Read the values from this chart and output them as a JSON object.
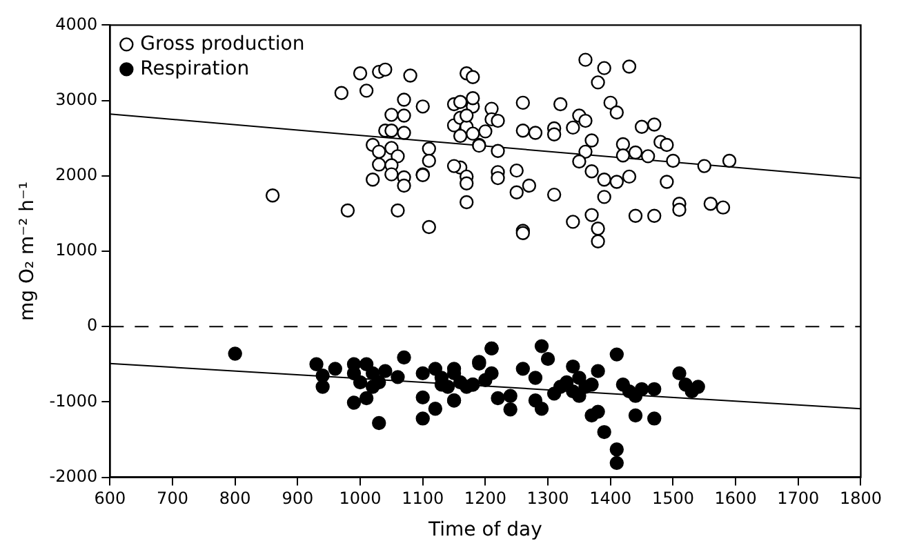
{
  "chart_data": {
    "type": "scatter",
    "xlabel": "Time of day",
    "ylabel": "mg O₂ m⁻² h⁻¹",
    "xlim": [
      600,
      1800
    ],
    "xticks": [
      600,
      700,
      800,
      900,
      1000,
      1100,
      1200,
      1300,
      1400,
      1500,
      1600,
      1700,
      1800
    ],
    "ylim": [
      -2000,
      4000
    ],
    "yticks": [
      -2000,
      -1000,
      0,
      1000,
      2000,
      3000,
      4000
    ],
    "grid": false,
    "legend": "top left",
    "ref_lines": [
      {
        "axis": "y",
        "value": 0,
        "color": "#000000",
        "line_style": "dashed"
      }
    ],
    "series": [
      {
        "name": "Gross production",
        "type": "scatter",
        "color": "#000000",
        "marker": "circle",
        "x": [
          860,
          970,
          1000,
          1010,
          1030,
          1040,
          1080,
          1070,
          1100,
          1050,
          1070,
          1040,
          1050,
          1070,
          1020,
          1030,
          1050,
          1060,
          1030,
          1050,
          1110,
          1110,
          1100,
          1100,
          1020,
          1050,
          1070,
          1070,
          980,
          1060,
          1110,
          1170,
          1180,
          1150,
          1160,
          1180,
          1180,
          1210,
          1150,
          1160,
          1170,
          1180,
          1160,
          1190,
          1200,
          1160,
          1170,
          1170,
          1170,
          1360,
          1390,
          1430,
          1380,
          1260,
          1320,
          1400,
          1410,
          1170,
          1210,
          1220,
          1260,
          1280,
          1310,
          1310,
          1340,
          1350,
          1360,
          1450,
          1470,
          1480,
          1490,
          1590,
          1150,
          1190,
          1220,
          1370,
          1360,
          1350,
          1420,
          1420,
          1440,
          1460,
          1500,
          1550,
          1220,
          1220,
          1250,
          1250,
          1270,
          1310,
          1370,
          1390,
          1410,
          1430,
          1390,
          1490,
          1510,
          1510,
          1560,
          1580,
          1340,
          1370,
          1380,
          1380,
          1440,
          1470,
          1260,
          1260
        ],
        "values": [
          1740,
          3100,
          3360,
          3130,
          3380,
          3410,
          3330,
          3010,
          2920,
          2810,
          2800,
          2600,
          2600,
          2570,
          2410,
          2320,
          2370,
          2260,
          2150,
          2140,
          2360,
          2200,
          2020,
          2010,
          1950,
          2020,
          1980,
          1870,
          1540,
          1540,
          1320,
          3360,
          3310,
          2950,
          2980,
          2920,
          3030,
          2890,
          2670,
          2770,
          2650,
          2560,
          2530,
          2410,
          2590,
          2110,
          1990,
          1900,
          1650,
          3540,
          3430,
          3450,
          3240,
          2970,
          2950,
          2970,
          2840,
          2800,
          2750,
          2730,
          2600,
          2570,
          2630,
          2550,
          2640,
          2800,
          2730,
          2650,
          2680,
          2450,
          2410,
          2200,
          2130,
          2400,
          2330,
          2470,
          2320,
          2190,
          2420,
          2270,
          2310,
          2260,
          2200,
          2130,
          2050,
          1970,
          2070,
          1780,
          1870,
          1750,
          2060,
          1950,
          1920,
          1990,
          1720,
          1920,
          1630,
          1550,
          1630,
          1580,
          1390,
          1480,
          1300,
          1130,
          1470,
          1470,
          1270,
          1240
        ]
      },
      {
        "name": "Respiration",
        "type": "scatter",
        "color": "#000000",
        "marker": "circle",
        "x": [
          800,
          930,
          940,
          940,
          960,
          990,
          990,
          1010,
          1020,
          1040,
          1000,
          1020,
          1030,
          990,
          1010,
          1030,
          1060,
          1070,
          1100,
          1120,
          1130,
          1150,
          1160,
          1140,
          1130,
          1170,
          1180,
          1100,
          1120,
          1100,
          1150,
          1190,
          1210,
          1150,
          1150,
          1180,
          1190,
          1200,
          1210,
          1210,
          1220,
          1240,
          1240,
          1260,
          1280,
          1290,
          1300,
          1280,
          1290,
          1320,
          1330,
          1340,
          1350,
          1350,
          1360,
          1370,
          1310,
          1340,
          1370,
          1380,
          1390,
          1410,
          1410,
          1410,
          1380,
          1420,
          1430,
          1440,
          1450,
          1440,
          1470,
          1470,
          1510,
          1520,
          1540,
          1530
        ],
        "values": [
          -360,
          -500,
          -650,
          -800,
          -560,
          -500,
          -620,
          -500,
          -620,
          -590,
          -740,
          -800,
          -740,
          -1010,
          -950,
          -1280,
          -670,
          -410,
          -620,
          -560,
          -680,
          -560,
          -740,
          -800,
          -770,
          -800,
          -770,
          -940,
          -1090,
          -1220,
          -980,
          -490,
          -290,
          -620,
          -980,
          -770,
          -470,
          -710,
          -290,
          -620,
          -950,
          -920,
          -1100,
          -560,
          -680,
          -260,
          -430,
          -980,
          -1090,
          -800,
          -740,
          -530,
          -680,
          -920,
          -800,
          -770,
          -890,
          -860,
          -1180,
          -1130,
          -1400,
          -370,
          -1630,
          -1810,
          -590,
          -770,
          -860,
          -920,
          -830,
          -1180,
          -1220,
          -830,
          -620,
          -770,
          -800,
          -860
        ]
      },
      {
        "type": "line",
        "color": "#000000",
        "marker": "none",
        "x": [
          600,
          1800
        ],
        "values": [
          2820,
          1970
        ]
      },
      {
        "type": "line",
        "color": "#000000",
        "marker": "none",
        "x": [
          600,
          1800
        ],
        "values": [
          -490,
          -1090
        ]
      }
    ]
  }
}
